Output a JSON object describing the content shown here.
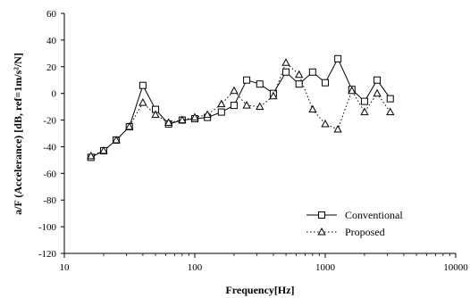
{
  "chart_data": {
    "type": "line",
    "xlabel": "Frequency[Hz]",
    "ylabel": "a/F (Accelerance) [dB, ref=1m/s²/N]",
    "xscale": "log",
    "xlim": [
      10,
      10000
    ],
    "ylim": [
      -120,
      60
    ],
    "xticks": [
      10,
      100,
      1000,
      10000
    ],
    "xtick_labels": [
      "10",
      "100",
      "1000",
      "10000"
    ],
    "yticks": [
      -120,
      -100,
      -80,
      -60,
      -40,
      -20,
      0,
      20,
      40,
      60
    ],
    "ytick_labels": [
      "-120",
      "-100",
      "-80",
      "-60",
      "-40",
      "-20",
      "0",
      "20",
      "40",
      "60"
    ],
    "grid": false,
    "legend_position": "bottom-right",
    "x": [
      16,
      20,
      25,
      31.5,
      40,
      50,
      63,
      80,
      100,
      125,
      160,
      200,
      250,
      315,
      400,
      500,
      630,
      800,
      1000,
      1250,
      1600,
      2000,
      2500,
      3150
    ],
    "series": [
      {
        "name": "Conventional",
        "line_style": "solid",
        "marker": "square",
        "color": "#000000",
        "values": [
          -48,
          -43,
          -35,
          -25,
          6,
          -12,
          -23,
          -20,
          -19,
          -18,
          -14,
          -9,
          10,
          7,
          0,
          16,
          7,
          16,
          8,
          26,
          3,
          -6,
          10,
          -4
        ]
      },
      {
        "name": "Proposed",
        "line_style": "dotted",
        "marker": "triangle",
        "color": "#000000",
        "values": [
          -47,
          -43,
          -35,
          -25,
          -7,
          -16,
          -22,
          -20,
          -18,
          -16,
          -8,
          2,
          -9,
          -10,
          -2,
          23,
          14,
          -12,
          -23,
          -27,
          2,
          -14,
          0,
          -14
        ]
      }
    ]
  }
}
